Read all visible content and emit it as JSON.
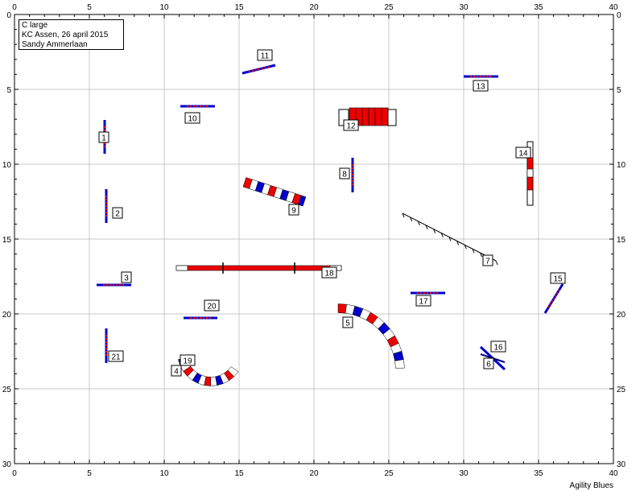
{
  "course": {
    "class": "C large",
    "event": "KC Assen, 26 april 2015",
    "judge": "Sandy Ammerlaan"
  },
  "footer": "Agility Blues",
  "axes": {
    "x_ticks": [
      "0",
      "5",
      "10",
      "15",
      "20",
      "25",
      "30",
      "35",
      "40"
    ],
    "y_ticks": [
      "0",
      "5",
      "10",
      "15",
      "20",
      "25",
      "30"
    ]
  },
  "colors": {
    "grid": "#c8c8c8",
    "red": "#ee0000",
    "blue": "#0000cc",
    "pole": "#000080"
  },
  "obstacles": [
    {
      "n": "1",
      "label": "1",
      "type": "jump"
    },
    {
      "n": "2",
      "label": "2",
      "type": "jump"
    },
    {
      "n": "3",
      "label": "3",
      "type": "jump"
    },
    {
      "n": "4",
      "label": "4",
      "type": "tunnel"
    },
    {
      "n": "5",
      "label": "5",
      "type": "tunnel"
    },
    {
      "n": "6",
      "label": "6",
      "type": "cross-jump"
    },
    {
      "n": "7",
      "label": "7",
      "type": "weave"
    },
    {
      "n": "8",
      "label": "8",
      "type": "jump"
    },
    {
      "n": "9",
      "label": "9",
      "type": "tire"
    },
    {
      "n": "10",
      "label": "10",
      "type": "jump"
    },
    {
      "n": "11",
      "label": "11",
      "type": "jump"
    },
    {
      "n": "12",
      "label": "12",
      "type": "long-jump"
    },
    {
      "n": "13",
      "label": "13",
      "type": "jump"
    },
    {
      "n": "14",
      "label": "14",
      "type": "table"
    },
    {
      "n": "15",
      "label": "15",
      "type": "jump"
    },
    {
      "n": "16",
      "label": "16",
      "type": "cross-jump"
    },
    {
      "n": "17",
      "label": "17",
      "type": "jump"
    },
    {
      "n": "18",
      "label": "18",
      "type": "dogwalk"
    },
    {
      "n": "19",
      "label": "19",
      "type": "tunnel"
    },
    {
      "n": "20",
      "label": "20",
      "type": "jump"
    },
    {
      "n": "21",
      "label": "21",
      "type": "jump"
    }
  ]
}
